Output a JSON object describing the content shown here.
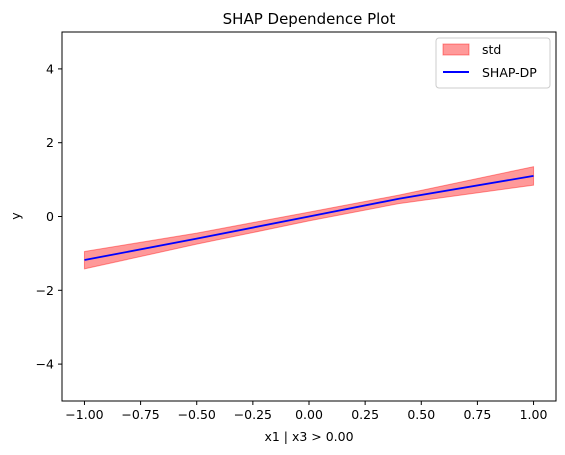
{
  "chart_data": {
    "type": "line",
    "title": "SHAP Dependence Plot",
    "xlabel": "x1 | x3 > 0.00",
    "ylabel": "y",
    "xlim": [
      -1.1,
      1.1
    ],
    "ylim": [
      -5,
      5
    ],
    "xticks": [
      -1.0,
      -0.75,
      -0.5,
      -0.25,
      0.0,
      0.25,
      0.5,
      0.75,
      1.0
    ],
    "xtick_labels": [
      "−1.00",
      "−0.75",
      "−0.50",
      "−0.25",
      "0.00",
      "0.25",
      "0.50",
      "0.75",
      "1.00"
    ],
    "yticks": [
      4,
      2,
      0,
      -2,
      -4
    ],
    "ytick_labels": [
      "4",
      "2",
      "0",
      "−2",
      "−4"
    ],
    "grid": false,
    "legend_position": "top-right",
    "series": [
      {
        "name": "SHAP-DP",
        "kind": "line",
        "color": "#0000ff",
        "x": [
          -1.0,
          -0.5,
          0.0,
          0.4,
          1.0
        ],
        "y": [
          -1.18,
          -0.6,
          0.0,
          0.48,
          1.1
        ]
      },
      {
        "name": "std",
        "kind": "band",
        "color": "#ff0000",
        "opacity": 0.4,
        "x": [
          -1.0,
          -0.5,
          0.0,
          0.4,
          1.0
        ],
        "upper": [
          -0.95,
          -0.45,
          0.12,
          0.58,
          1.35
        ],
        "lower": [
          -1.42,
          -0.75,
          -0.12,
          0.35,
          0.85
        ]
      }
    ]
  }
}
